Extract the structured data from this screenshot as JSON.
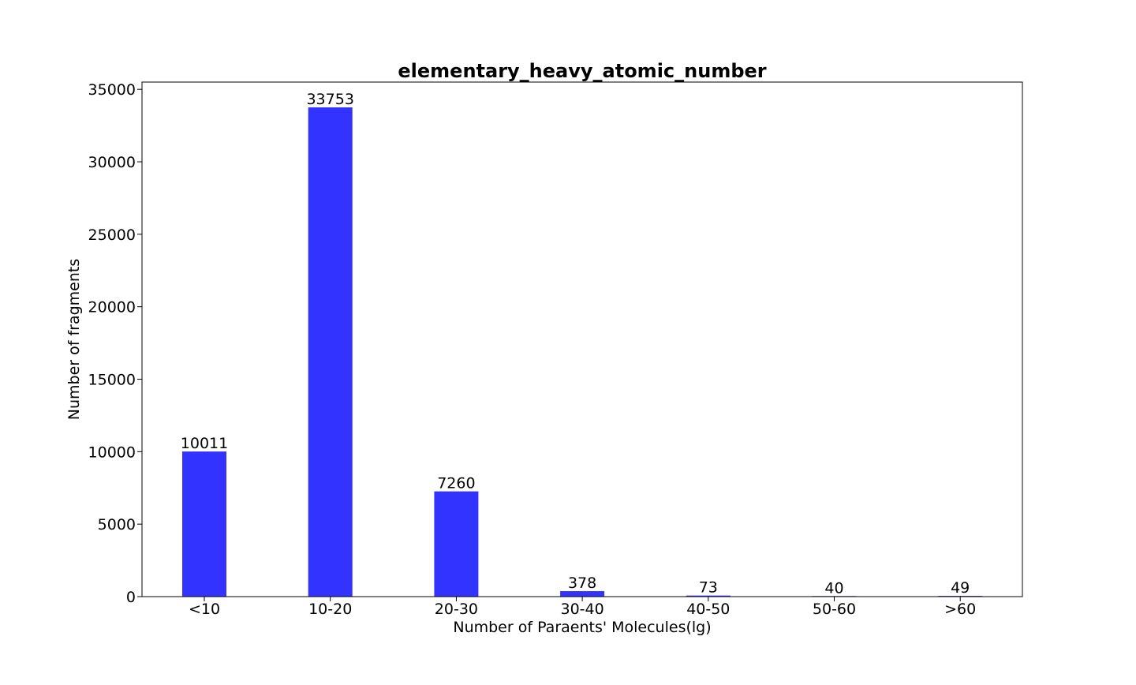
{
  "chart_data": {
    "type": "bar",
    "title": "elementary_heavy_atomic_number",
    "xlabel": "Number of Paraents' Molecules(lg)",
    "ylabel": "Number of fragments",
    "categories": [
      "<10",
      "10-20",
      "20-30",
      "30-40",
      "40-50",
      "50-60",
      ">60"
    ],
    "values": [
      10011,
      33753,
      7260,
      378,
      73,
      40,
      49
    ],
    "data_labels": [
      "10011",
      "33753",
      "7260",
      "378",
      "73",
      "40",
      "49"
    ],
    "ylim": [
      0,
      35500
    ],
    "yticks": [
      0,
      5000,
      10000,
      15000,
      20000,
      25000,
      30000,
      35000
    ],
    "ytick_labels": [
      "0",
      "5000",
      "10000",
      "15000",
      "20000",
      "25000",
      "30000",
      "35000"
    ],
    "grid": false,
    "legend": "none",
    "bar_color": "#3333ff"
  }
}
